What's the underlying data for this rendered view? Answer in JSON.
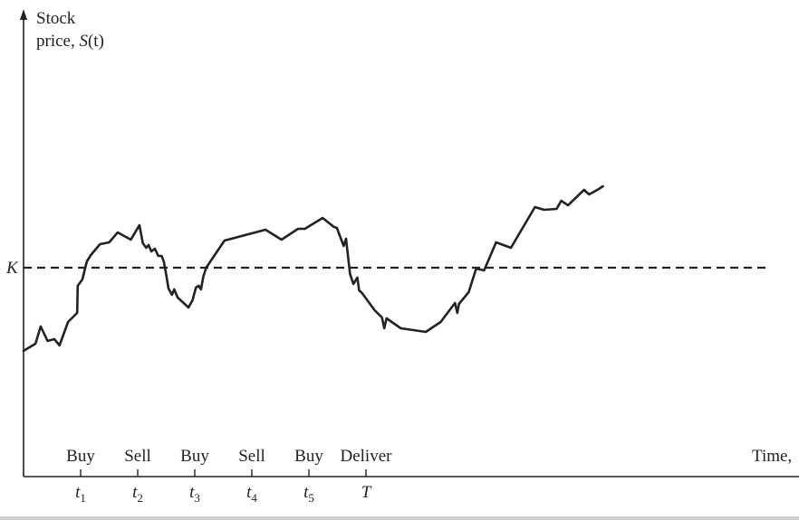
{
  "chart_data": {
    "type": "line",
    "ylabel_line1": "Stock",
    "ylabel_line2_prefix": "price, ",
    "ylabel_symbol": "S",
    "ylabel_arg": "(t)",
    "xlabel": "Time,",
    "reference_line": {
      "label": "K",
      "value": 0
    },
    "x_ticks": [
      {
        "x": 1,
        "symbol": "t",
        "sub": "1",
        "action": "Buy"
      },
      {
        "x": 2,
        "symbol": "t",
        "sub": "2",
        "action": "Sell"
      },
      {
        "x": 3,
        "symbol": "t",
        "sub": "3",
        "action": "Buy"
      },
      {
        "x": 4,
        "symbol": "t",
        "sub": "4",
        "action": "Sell"
      },
      {
        "x": 5,
        "symbol": "t",
        "sub": "5",
        "action": "Buy"
      },
      {
        "x": 6,
        "symbol": "T",
        "sub": "",
        "action": "Deliver"
      }
    ],
    "series": [
      {
        "points": [
          [
            0,
            -92
          ],
          [
            0.21,
            -84
          ],
          [
            0.3,
            -65
          ],
          [
            0.42,
            -81
          ],
          [
            0.54,
            -79
          ],
          [
            0.63,
            -86
          ],
          [
            0.78,
            -60
          ],
          [
            0.94,
            -50
          ],
          [
            0.95,
            -20
          ],
          [
            1.03,
            -13
          ],
          [
            1.11,
            7
          ],
          [
            1.18,
            14
          ],
          [
            1.34,
            26
          ],
          [
            1.5,
            28
          ],
          [
            1.65,
            39
          ],
          [
            1.88,
            31
          ],
          [
            2.03,
            47
          ],
          [
            2.09,
            27
          ],
          [
            2.15,
            22
          ],
          [
            2.19,
            25
          ],
          [
            2.24,
            18
          ],
          [
            2.3,
            21
          ],
          [
            2.36,
            13
          ],
          [
            2.42,
            13
          ],
          [
            2.46,
            6
          ],
          [
            2.5,
            -8
          ],
          [
            2.54,
            -23
          ],
          [
            2.6,
            -30
          ],
          [
            2.64,
            -24
          ],
          [
            2.7,
            -33
          ],
          [
            2.89,
            -44
          ],
          [
            2.96,
            -36
          ],
          [
            3.02,
            -22
          ],
          [
            3.07,
            -20
          ],
          [
            3.11,
            -24
          ],
          [
            3.15,
            -10
          ],
          [
            3.2,
            0
          ],
          [
            3.52,
            30
          ],
          [
            4.24,
            42
          ],
          [
            4.52,
            31
          ],
          [
            4.81,
            43
          ],
          [
            4.93,
            43
          ],
          [
            5.24,
            55
          ],
          [
            5.44,
            45
          ],
          [
            5.49,
            44
          ],
          [
            5.55,
            34
          ],
          [
            5.61,
            24
          ],
          [
            5.65,
            32
          ],
          [
            5.72,
            -7
          ],
          [
            5.78,
            -18
          ],
          [
            5.85,
            -11
          ],
          [
            5.88,
            -25
          ],
          [
            5.93,
            -28
          ],
          [
            6.15,
            -47
          ],
          [
            6.28,
            -55
          ],
          [
            6.32,
            -67
          ],
          [
            6.36,
            -56
          ],
          [
            6.61,
            -67
          ],
          [
            7.05,
            -71
          ],
          [
            7.31,
            -60
          ],
          [
            7.56,
            -39
          ],
          [
            7.6,
            -50
          ],
          [
            7.63,
            -40
          ],
          [
            7.8,
            -27
          ],
          [
            7.93,
            -1
          ],
          [
            8.07,
            -3
          ],
          [
            8.28,
            28
          ],
          [
            8.54,
            22
          ],
          [
            8.96,
            67
          ],
          [
            9.12,
            64
          ],
          [
            9.34,
            65
          ],
          [
            9.42,
            74
          ],
          [
            9.54,
            69
          ],
          [
            9.82,
            86
          ],
          [
            9.91,
            81
          ],
          [
            10.08,
            87
          ],
          [
            10.15,
            90
          ]
        ]
      }
    ]
  }
}
